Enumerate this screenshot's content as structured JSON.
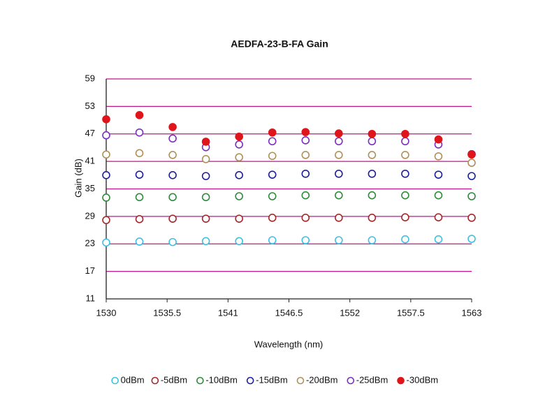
{
  "chart_data": {
    "type": "scatter",
    "title": "AEDFA-23-B-FA Gain",
    "xlabel": "Wavelength (nm)",
    "ylabel": "Gain (dB)",
    "xlim": [
      1530,
      1563
    ],
    "xticks": [
      1530,
      1535.5,
      1541,
      1546.5,
      1552,
      1557.5,
      1563
    ],
    "ylim": [
      11,
      59
    ],
    "yticks": [
      11,
      17,
      23,
      29,
      35,
      41,
      47,
      53,
      59
    ],
    "grid": true,
    "grid_color": "#c0168c",
    "legend": "bottom",
    "x": [
      1530,
      1533,
      1536,
      1539,
      1542,
      1545,
      1548,
      1551,
      1554,
      1557,
      1560,
      1563
    ],
    "series": [
      {
        "name": "0dBm",
        "color": "#3ec1e0",
        "marker": "open",
        "values": [
          23.3,
          23.5,
          23.4,
          23.6,
          23.6,
          23.8,
          23.8,
          23.8,
          23.8,
          24.0,
          24.0,
          24.1
        ]
      },
      {
        "name": "-5dBm",
        "color": "#a5282c",
        "marker": "open",
        "values": [
          28.2,
          28.4,
          28.5,
          28.5,
          28.5,
          28.7,
          28.7,
          28.7,
          28.7,
          28.8,
          28.8,
          28.7
        ]
      },
      {
        "name": "-10dBm",
        "color": "#2e8b3c",
        "marker": "open",
        "values": [
          33.1,
          33.2,
          33.2,
          33.2,
          33.4,
          33.4,
          33.6,
          33.6,
          33.6,
          33.6,
          33.6,
          33.4
        ]
      },
      {
        "name": "-15dBm",
        "color": "#1d1f9c",
        "marker": "open",
        "values": [
          38.0,
          38.1,
          38.0,
          37.8,
          38.0,
          38.1,
          38.3,
          38.3,
          38.3,
          38.3,
          38.1,
          37.8
        ]
      },
      {
        "name": "-20dBm",
        "color": "#b0905a",
        "marker": "open",
        "values": [
          42.5,
          42.8,
          42.4,
          41.5,
          41.9,
          42.2,
          42.4,
          42.4,
          42.4,
          42.4,
          42.1,
          40.7
        ]
      },
      {
        "name": "-25dBm",
        "color": "#7b2fbf",
        "marker": "open",
        "values": [
          46.7,
          47.3,
          46.0,
          44.1,
          44.7,
          45.4,
          45.6,
          45.4,
          45.4,
          45.4,
          44.7,
          42.6
        ]
      },
      {
        "name": "-30dBm",
        "color": "#e0141b",
        "marker": "filled",
        "values": [
          50.2,
          51.1,
          48.5,
          45.3,
          46.4,
          47.3,
          47.4,
          47.1,
          47.0,
          47.0,
          45.8,
          42.5
        ]
      }
    ]
  }
}
